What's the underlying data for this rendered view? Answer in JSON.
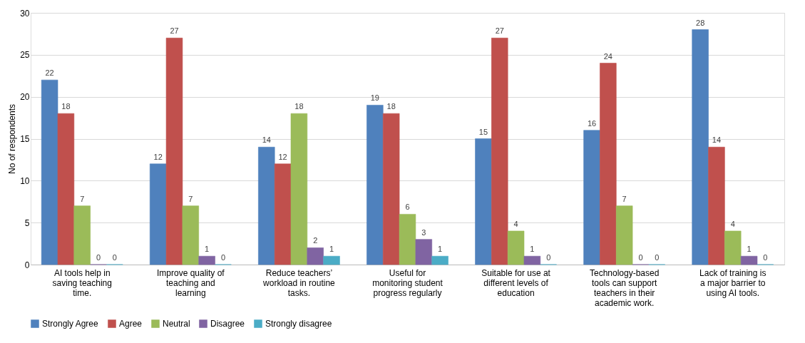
{
  "chart_data": {
    "type": "bar",
    "ylabel": "No of respondents",
    "categories": [
      "AI tools help in saving teaching time.",
      "Improve quality of teaching and learning",
      "Reduce teachers’ workload in routine tasks.",
      "Useful for monitoring student progress regularly",
      "Suitable for use at different levels of education",
      "Technology-based tools can support teachers in their academic work.",
      "Lack of training is a major barrier to using AI tools."
    ],
    "series": [
      {
        "name": "Strongly Agree",
        "color": "#4f81bd",
        "values": [
          22,
          12,
          14,
          19,
          15,
          16,
          28
        ]
      },
      {
        "name": "Agree",
        "color": "#c0504d",
        "values": [
          18,
          27,
          12,
          18,
          27,
          24,
          14
        ]
      },
      {
        "name": "Neutral",
        "color": "#9bbb59",
        "values": [
          7,
          7,
          18,
          6,
          4,
          7,
          4
        ]
      },
      {
        "name": "Disagree",
        "color": "#8064a2",
        "values": [
          0,
          1,
          2,
          3,
          1,
          0,
          1
        ]
      },
      {
        "name": "Strongly disagree",
        "color": "#4bacc6",
        "values": [
          0,
          0,
          1,
          1,
          0,
          0,
          0
        ]
      }
    ],
    "ylim": [
      0,
      30
    ],
    "yticks": [
      0,
      5,
      10,
      15,
      20,
      25,
      30
    ],
    "grid": "y",
    "legend": "bottom",
    "data_labels": true
  }
}
